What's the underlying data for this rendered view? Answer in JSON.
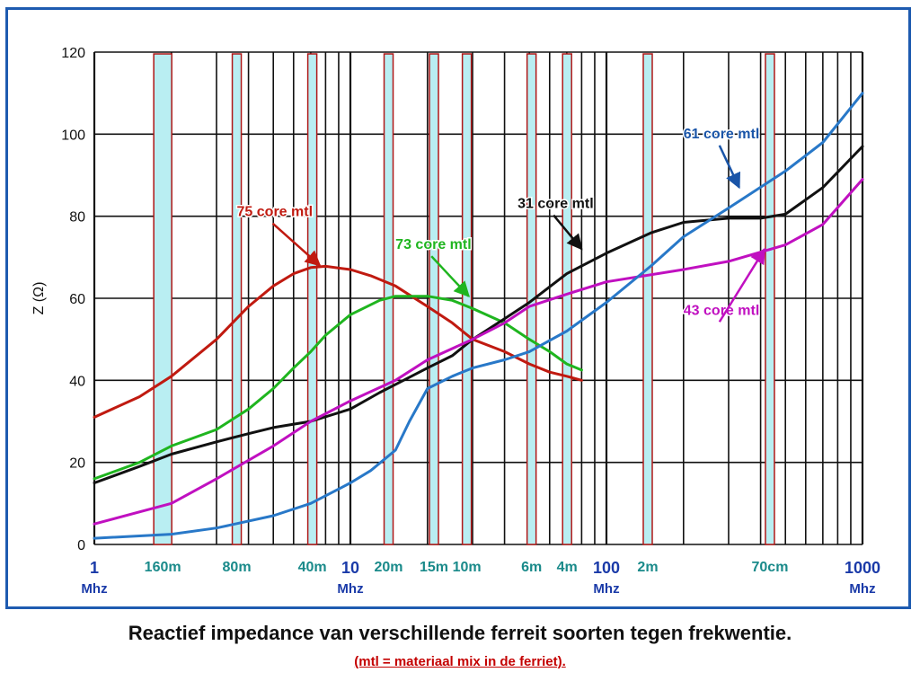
{
  "chart_data": {
    "type": "line",
    "x_scale": "log",
    "xlim": [
      1,
      1000
    ],
    "ylim": [
      0,
      120
    ],
    "ylabel": "Z (Ω)",
    "y_ticks": [
      "0",
      "20",
      "40",
      "60",
      "80",
      "100",
      "120"
    ],
    "x_tick_labels": [
      {
        "value": 1,
        "top": "1",
        "bottom": "Mhz"
      },
      {
        "value": 10,
        "top": "10",
        "bottom": "Mhz"
      },
      {
        "value": 100,
        "top": "100",
        "bottom": "Mhz"
      },
      {
        "value": 1000,
        "top": "1000",
        "bottom": "Mhz"
      }
    ],
    "bands": [
      {
        "label": "160m",
        "x": 1.85,
        "color": "#b9eef2",
        "frame": "#b01818"
      },
      {
        "label": "80m",
        "x": 3.6,
        "color": "#b9eef2",
        "frame": "#b01818"
      },
      {
        "label": "40m",
        "x": 7.1,
        "color": "#b9eef2",
        "frame": "#b01818"
      },
      {
        "label": "20m",
        "x": 14.1,
        "color": "#b9eef2",
        "frame": "#b01818"
      },
      {
        "label": "15m",
        "x": 21.2,
        "color": "#b9eef2",
        "frame": "#b01818"
      },
      {
        "label": "10m",
        "x": 28.5,
        "color": "#b9eef2",
        "frame": "#b01818"
      },
      {
        "label": "6m",
        "x": 51,
        "color": "#b9eef2",
        "frame": "#b01818"
      },
      {
        "label": "4m",
        "x": 70.2,
        "color": "#b9eef2",
        "frame": "#b01818"
      },
      {
        "label": "2m",
        "x": 145,
        "color": "#b9eef2",
        "frame": "#b01818"
      },
      {
        "label": "70cm",
        "x": 435,
        "color": "#b9eef2",
        "frame": "#b01818"
      }
    ],
    "series": [
      {
        "name": "75 core mtl",
        "color": "#c01a10",
        "x": [
          1,
          1.5,
          2,
          3,
          4,
          5,
          6,
          7,
          8,
          10,
          12,
          15,
          20,
          25,
          30,
          40,
          50,
          60,
          70,
          80
        ],
        "y": [
          31,
          36,
          41,
          50,
          58,
          63,
          66,
          67.5,
          67.8,
          67,
          65.5,
          63,
          58,
          54,
          50,
          47,
          44,
          42,
          41,
          40
        ]
      },
      {
        "name": "73 core mtl",
        "color": "#1fb51f",
        "x": [
          1,
          1.5,
          2,
          3,
          4,
          5,
          6,
          7,
          8,
          10,
          13,
          15,
          20,
          25,
          30,
          40,
          50,
          60,
          70,
          80
        ],
        "y": [
          16,
          20,
          24,
          28,
          33,
          38,
          43,
          47,
          51,
          56,
          59.5,
          60.5,
          60.5,
          59.5,
          57.5,
          54,
          50,
          47,
          44,
          42.5
        ]
      },
      {
        "name": "31 core mtl",
        "color": "#111111",
        "x": [
          1,
          1.5,
          2,
          3,
          4,
          5,
          7,
          10,
          13,
          15,
          20,
          25,
          30,
          40,
          50,
          70,
          100,
          150,
          200,
          300,
          400,
          500,
          700,
          1000
        ],
        "y": [
          15,
          19,
          22,
          25,
          27,
          28.5,
          30,
          33,
          37,
          39,
          43,
          46,
          50,
          55,
          59,
          66,
          71,
          76,
          78.5,
          79.5,
          79.5,
          80.5,
          87,
          97
        ]
      },
      {
        "name": "43 core mtl",
        "color": "#c010c0",
        "x": [
          1,
          2,
          3,
          5,
          7,
          10,
          15,
          20,
          30,
          40,
          50,
          70,
          100,
          200,
          300,
          500,
          700,
          1000
        ],
        "y": [
          5,
          10,
          16,
          24,
          30,
          35,
          40,
          45,
          50,
          54,
          58,
          61,
          64,
          67,
          69,
          73,
          78,
          89
        ]
      },
      {
        "name": "61 core mtl",
        "color": "#2878c8",
        "x": [
          1,
          2,
          3,
          5,
          7,
          10,
          12,
          15,
          17,
          20,
          25,
          30,
          40,
          50,
          70,
          100,
          150,
          200,
          300,
          500,
          700,
          1000
        ],
        "y": [
          1.5,
          2.5,
          4,
          7,
          10,
          15,
          18,
          23,
          30,
          38,
          41,
          43,
          45,
          47,
          52,
          59,
          68,
          75,
          82,
          91,
          98,
          110
        ]
      }
    ],
    "annotations": [
      {
        "text": "75 core mtl",
        "series": 0,
        "color": "#c01a10",
        "label_xy": [
          3.6,
          80
        ],
        "arrow_to": [
          7.6,
          68
        ]
      },
      {
        "text": "73 core mtl",
        "series": 1,
        "color": "#1fb51f",
        "label_xy": [
          15,
          72
        ],
        "arrow_to": [
          29,
          60.5
        ]
      },
      {
        "text": "31  core mtl",
        "series": 2,
        "color": "#111111",
        "label_xy": [
          45,
          82
        ],
        "arrow_to": [
          80,
          72
        ]
      },
      {
        "text": "61 core mtl",
        "series": 4,
        "color": "#1a55a8",
        "label_xy": [
          200,
          99
        ],
        "arrow_to": [
          330,
          87
        ]
      },
      {
        "text": "43 core mtl",
        "series": 3,
        "color": "#c010c0",
        "label_xy": [
          200,
          56
        ],
        "arrow_to": [
          415,
          72
        ]
      }
    ]
  },
  "caption": "Reactief impedance van verschillende ferreit soorten tegen frekwentie.",
  "subcaption": "(mtl = materiaal mix in de ferriet)."
}
